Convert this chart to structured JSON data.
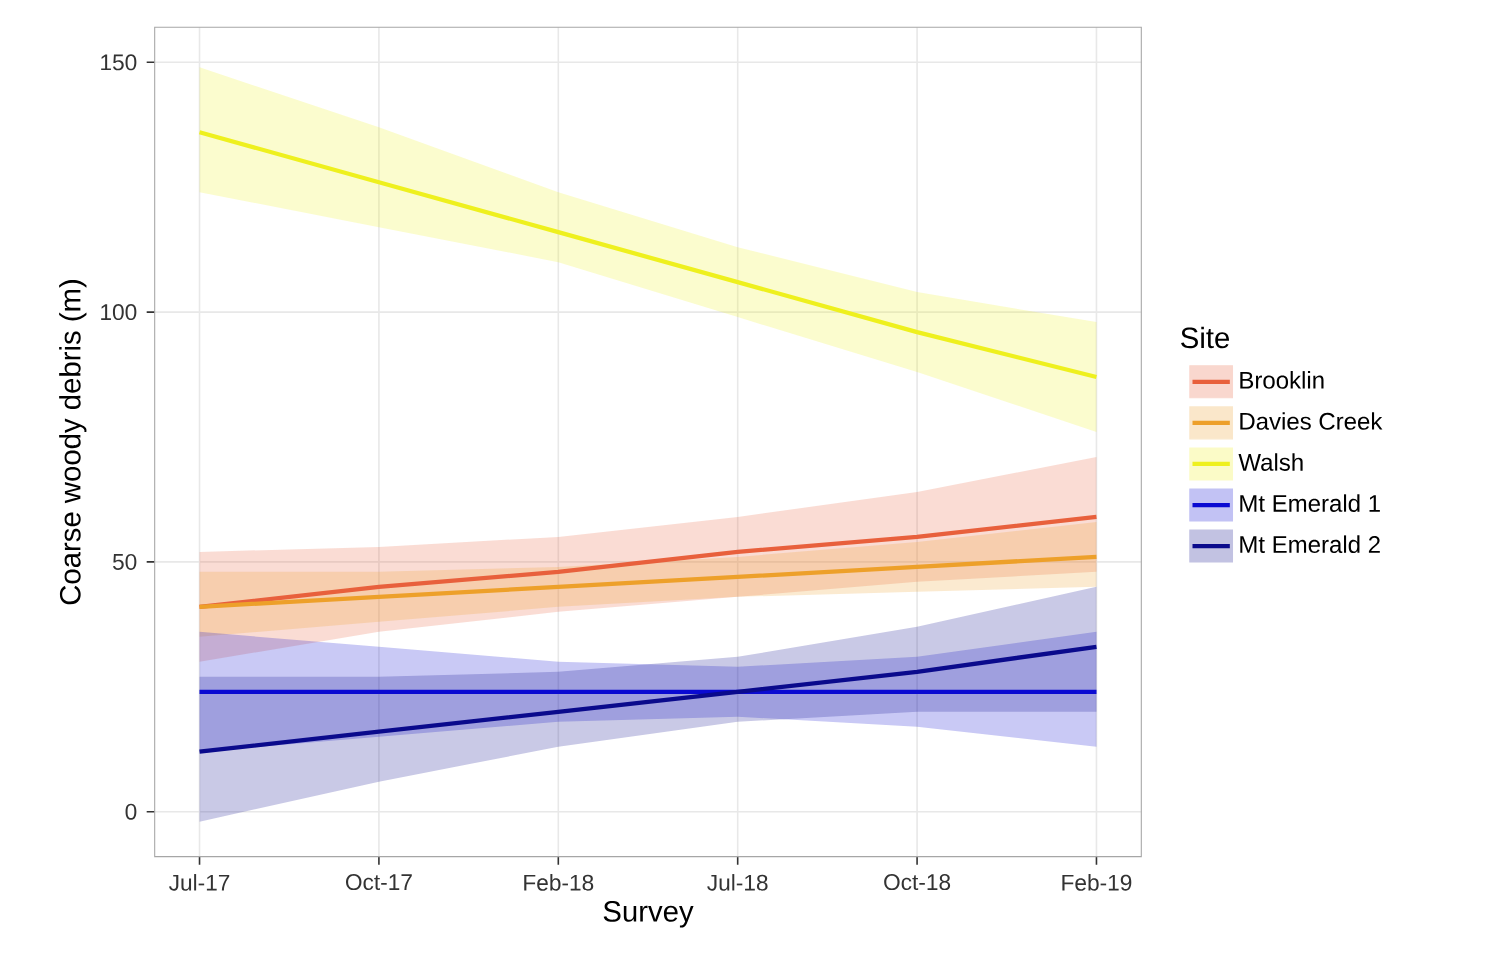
{
  "chart_data": {
    "type": "line",
    "xlabel": "Survey",
    "ylabel": "Coarse woody debris (m)",
    "legend_title": "Site",
    "legend": "right",
    "grid": true,
    "categories": [
      "Jul-17",
      "Oct-17",
      "Feb-18",
      "Jul-18",
      "Oct-18",
      "Feb-19"
    ],
    "ylim": [
      -9,
      157
    ],
    "yticks": [
      0,
      50,
      100,
      150
    ],
    "series": [
      {
        "name": "Brooklin",
        "color": "#e8603c",
        "values": [
          41,
          45,
          48,
          52,
          55,
          59
        ],
        "lower": [
          30,
          36,
          40,
          43,
          46,
          48
        ],
        "upper": [
          52,
          53,
          55,
          59,
          64,
          71
        ]
      },
      {
        "name": "Davies Creek",
        "color": "#eda02a",
        "values": [
          41,
          43,
          45,
          47,
          49,
          51
        ],
        "lower": [
          35,
          38,
          41,
          43,
          44,
          45
        ],
        "upper": [
          48,
          48,
          49,
          51,
          54,
          58
        ]
      },
      {
        "name": "Walsh",
        "color": "#eef01e",
        "values": [
          136,
          126,
          116,
          106,
          96,
          87
        ],
        "lower": [
          124,
          117,
          110,
          99,
          88,
          76
        ],
        "upper": [
          149,
          137,
          124,
          113,
          104,
          98
        ]
      },
      {
        "name": "Mt Emerald 1",
        "color": "#0a0ad2",
        "values": [
          24,
          24,
          24,
          24,
          24,
          24
        ],
        "lower": [
          12,
          15,
          18,
          19,
          17,
          13
        ],
        "upper": [
          36,
          33,
          30,
          29,
          31,
          36
        ]
      },
      {
        "name": "Mt Emerald 2",
        "color": "#0a0a8c",
        "values": [
          12,
          16,
          20,
          24,
          28,
          33
        ],
        "lower": [
          -2,
          6,
          13,
          18,
          20,
          20
        ],
        "upper": [
          27,
          27,
          28,
          31,
          37,
          45
        ]
      }
    ]
  }
}
